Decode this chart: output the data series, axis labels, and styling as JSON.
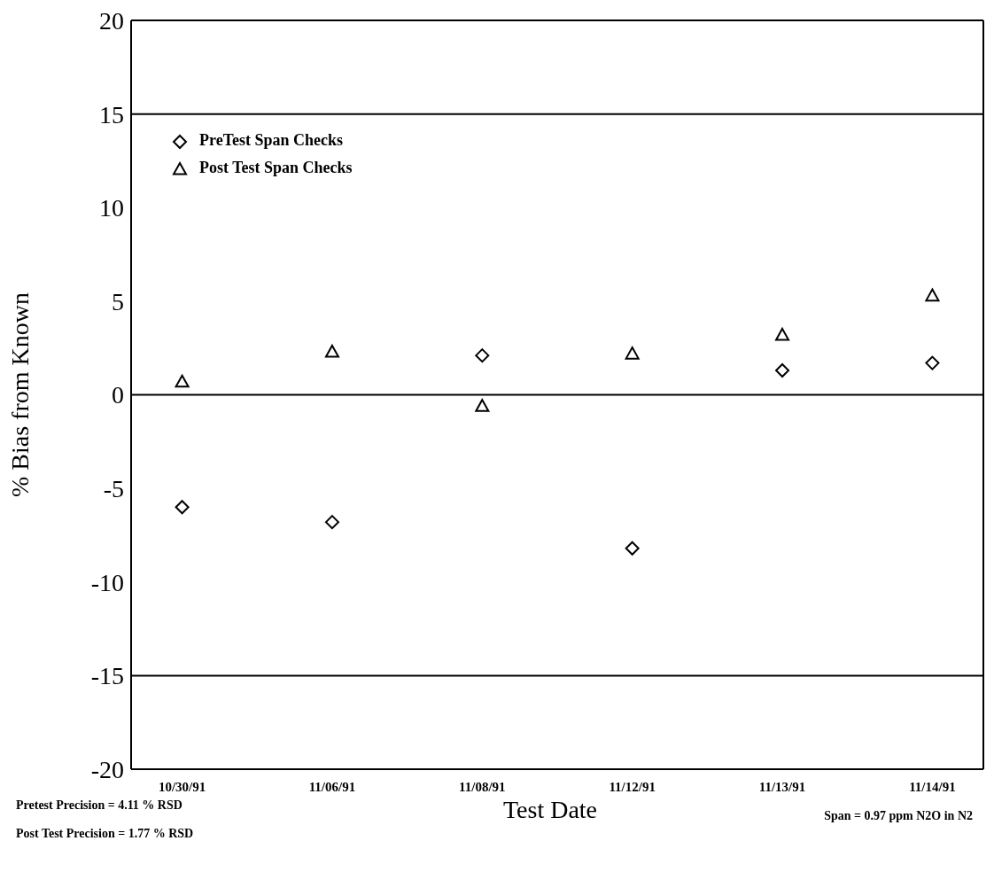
{
  "chart_data": {
    "type": "scatter",
    "xlabel": "Test Date",
    "ylabel": "% Bias from Known",
    "categories": [
      "10/30/91",
      "11/06/91",
      "11/08/91",
      "11/12/91",
      "11/13/91",
      "11/14/91"
    ],
    "series": [
      {
        "name": "PreTest Span Checks",
        "color": "#000000",
        "marker": "diamond",
        "values": [
          -6.0,
          -6.8,
          2.1,
          -8.2,
          1.3,
          1.7
        ]
      },
      {
        "name": "Post Test Span Checks",
        "color": "#000000",
        "marker": "triangle",
        "values": [
          0.7,
          2.3,
          -0.6,
          2.2,
          3.2,
          5.3
        ]
      }
    ],
    "ylim": [
      -20,
      20
    ],
    "yticks": [
      -20,
      -15,
      -10,
      -5,
      0,
      5,
      10,
      15,
      20
    ],
    "ref_lines": [
      {
        "axis": "y",
        "value": 15,
        "color": "#000000"
      },
      {
        "axis": "y",
        "value": 0,
        "color": "#000000"
      },
      {
        "axis": "y",
        "value": -15,
        "color": "#000000"
      }
    ],
    "legend": "top left",
    "annotations": [
      "Pretest Precision = 4.11 % RSD",
      "Post Test Precision = 1.77 % RSD",
      "Span = 0.97 ppm N2O in N2"
    ]
  }
}
